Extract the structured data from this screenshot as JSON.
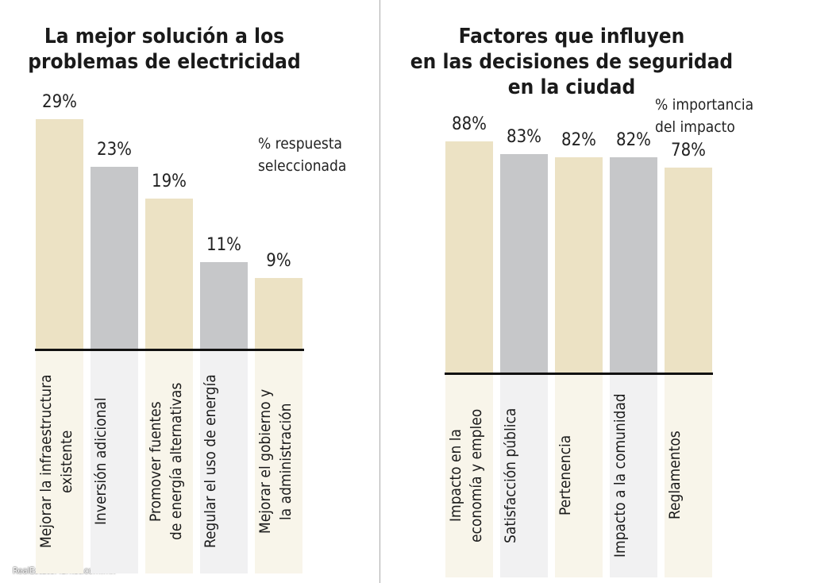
{
  "chart_data": [
    {
      "type": "bar",
      "title": "La mejor solución a los\nproblemas de electricidad",
      "note": "% respuesta\nseleccionada",
      "categories": [
        "Mejorar la infraestructura\nexistente",
        "Inversión adicional",
        "Promover fuentes\nde energía alternativas",
        "Regular el uso de energía",
        "Mejorar el gobierno y\nla administración"
      ],
      "values": [
        29,
        23,
        19,
        11,
        9
      ],
      "value_labels": [
        "29%",
        "23%",
        "19%",
        "11%",
        "9%"
      ],
      "colors": [
        "#ece2c4",
        "#c6c7c9",
        "#ece2c4",
        "#c6c7c9",
        "#ece2c4"
      ]
    },
    {
      "type": "bar",
      "title": "Factores que influyen\nen las decisiones de seguridad\nen la ciudad",
      "note": "% importancia\ndel impacto",
      "categories": [
        "Impacto en la\neconomía y empleo",
        "Satisfacción pública",
        "Pertenencia",
        "Impacto a la comunidad",
        "Reglamentos"
      ],
      "values": [
        88,
        83,
        82,
        82,
        78
      ],
      "value_labels": [
        "88%",
        "83%",
        "82%",
        "82%",
        "78%"
      ],
      "colors": [
        "#ece2c4",
        "#c6c7c9",
        "#ece2c4",
        "#c6c7c9",
        "#ece2c4"
      ]
    }
  ],
  "source": "RealEstateMarket.com.mx"
}
